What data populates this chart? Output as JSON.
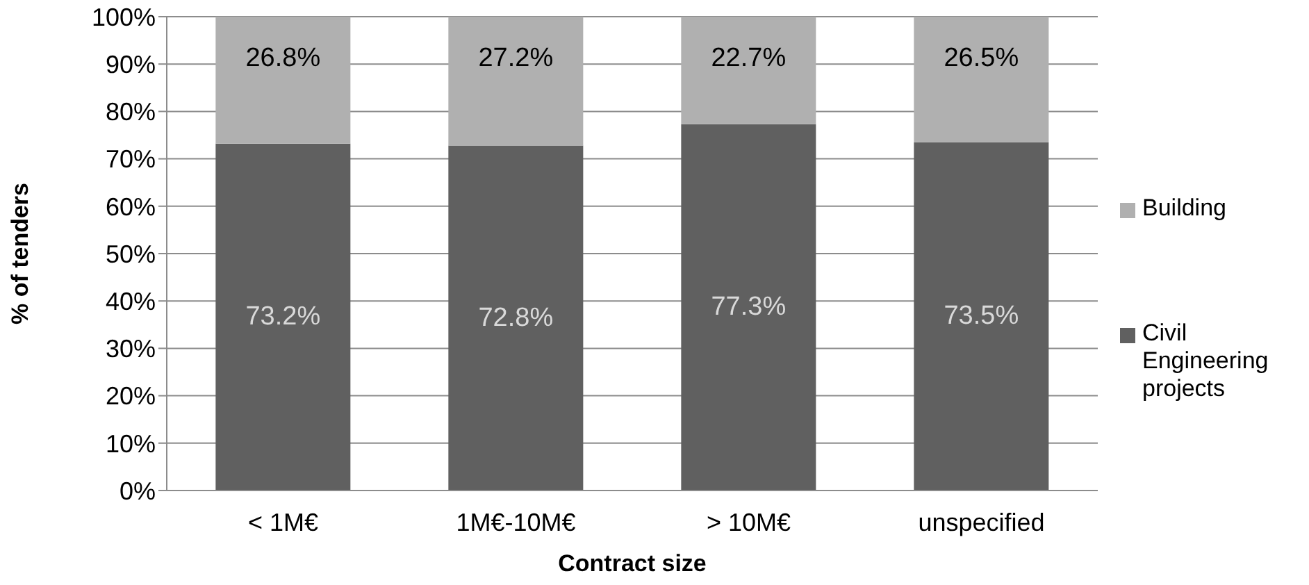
{
  "chart_data": {
    "type": "bar",
    "stacked": true,
    "xlabel": "Contract size",
    "ylabel": "% of tenders",
    "categories": [
      "< 1M€",
      "1M€-10M€",
      "> 10M€",
      "unspecified"
    ],
    "series": [
      {
        "name": "Civil Engineering projects",
        "color": "#606060",
        "values": [
          73.2,
          72.8,
          77.3,
          73.5
        ],
        "value_labels": [
          "73.2%",
          "72.8%",
          "77.3%",
          "73.5%"
        ]
      },
      {
        "name": "Building",
        "color": "#b0b0b0",
        "values": [
          26.8,
          27.2,
          22.7,
          26.5
        ],
        "value_labels": [
          "26.8%",
          "27.2%",
          "22.7%",
          "26.5%"
        ]
      }
    ],
    "ylim": [
      0,
      100
    ],
    "yticks": [
      {
        "value": 0,
        "label": "0%"
      },
      {
        "value": 10,
        "label": "10%"
      },
      {
        "value": 20,
        "label": "20%"
      },
      {
        "value": 30,
        "label": "30%"
      },
      {
        "value": 40,
        "label": "40%"
      },
      {
        "value": 50,
        "label": "50%"
      },
      {
        "value": 60,
        "label": "60%"
      },
      {
        "value": 70,
        "label": "70%"
      },
      {
        "value": 80,
        "label": "80%"
      },
      {
        "value": 90,
        "label": "90%"
      },
      {
        "value": 100,
        "label": "100%"
      }
    ],
    "grid": "y",
    "legend": "right"
  }
}
